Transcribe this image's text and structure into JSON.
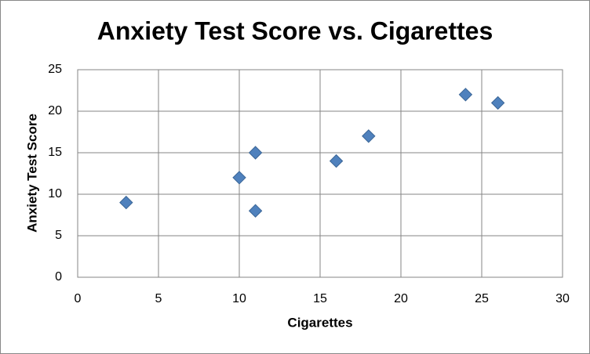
{
  "chart_data": {
    "type": "scatter",
    "title": "Anxiety Test Score vs. Cigarettes",
    "x_label": "Cigarettes",
    "y_label": "Anxiety Test Score",
    "series": [
      {
        "color": "#4f81bd",
        "x": [
          3,
          10,
          11,
          11,
          16,
          18,
          24,
          26
        ],
        "values": [
          9,
          12,
          15,
          8,
          14,
          17,
          22,
          21
        ]
      }
    ],
    "xlim": [
      0,
      30
    ],
    "xticks": [
      0,
      5,
      10,
      15,
      20,
      25,
      30
    ],
    "ylim": [
      0,
      25
    ],
    "yticks": [
      0,
      5,
      10,
      15,
      20,
      25
    ],
    "grid": true
  }
}
